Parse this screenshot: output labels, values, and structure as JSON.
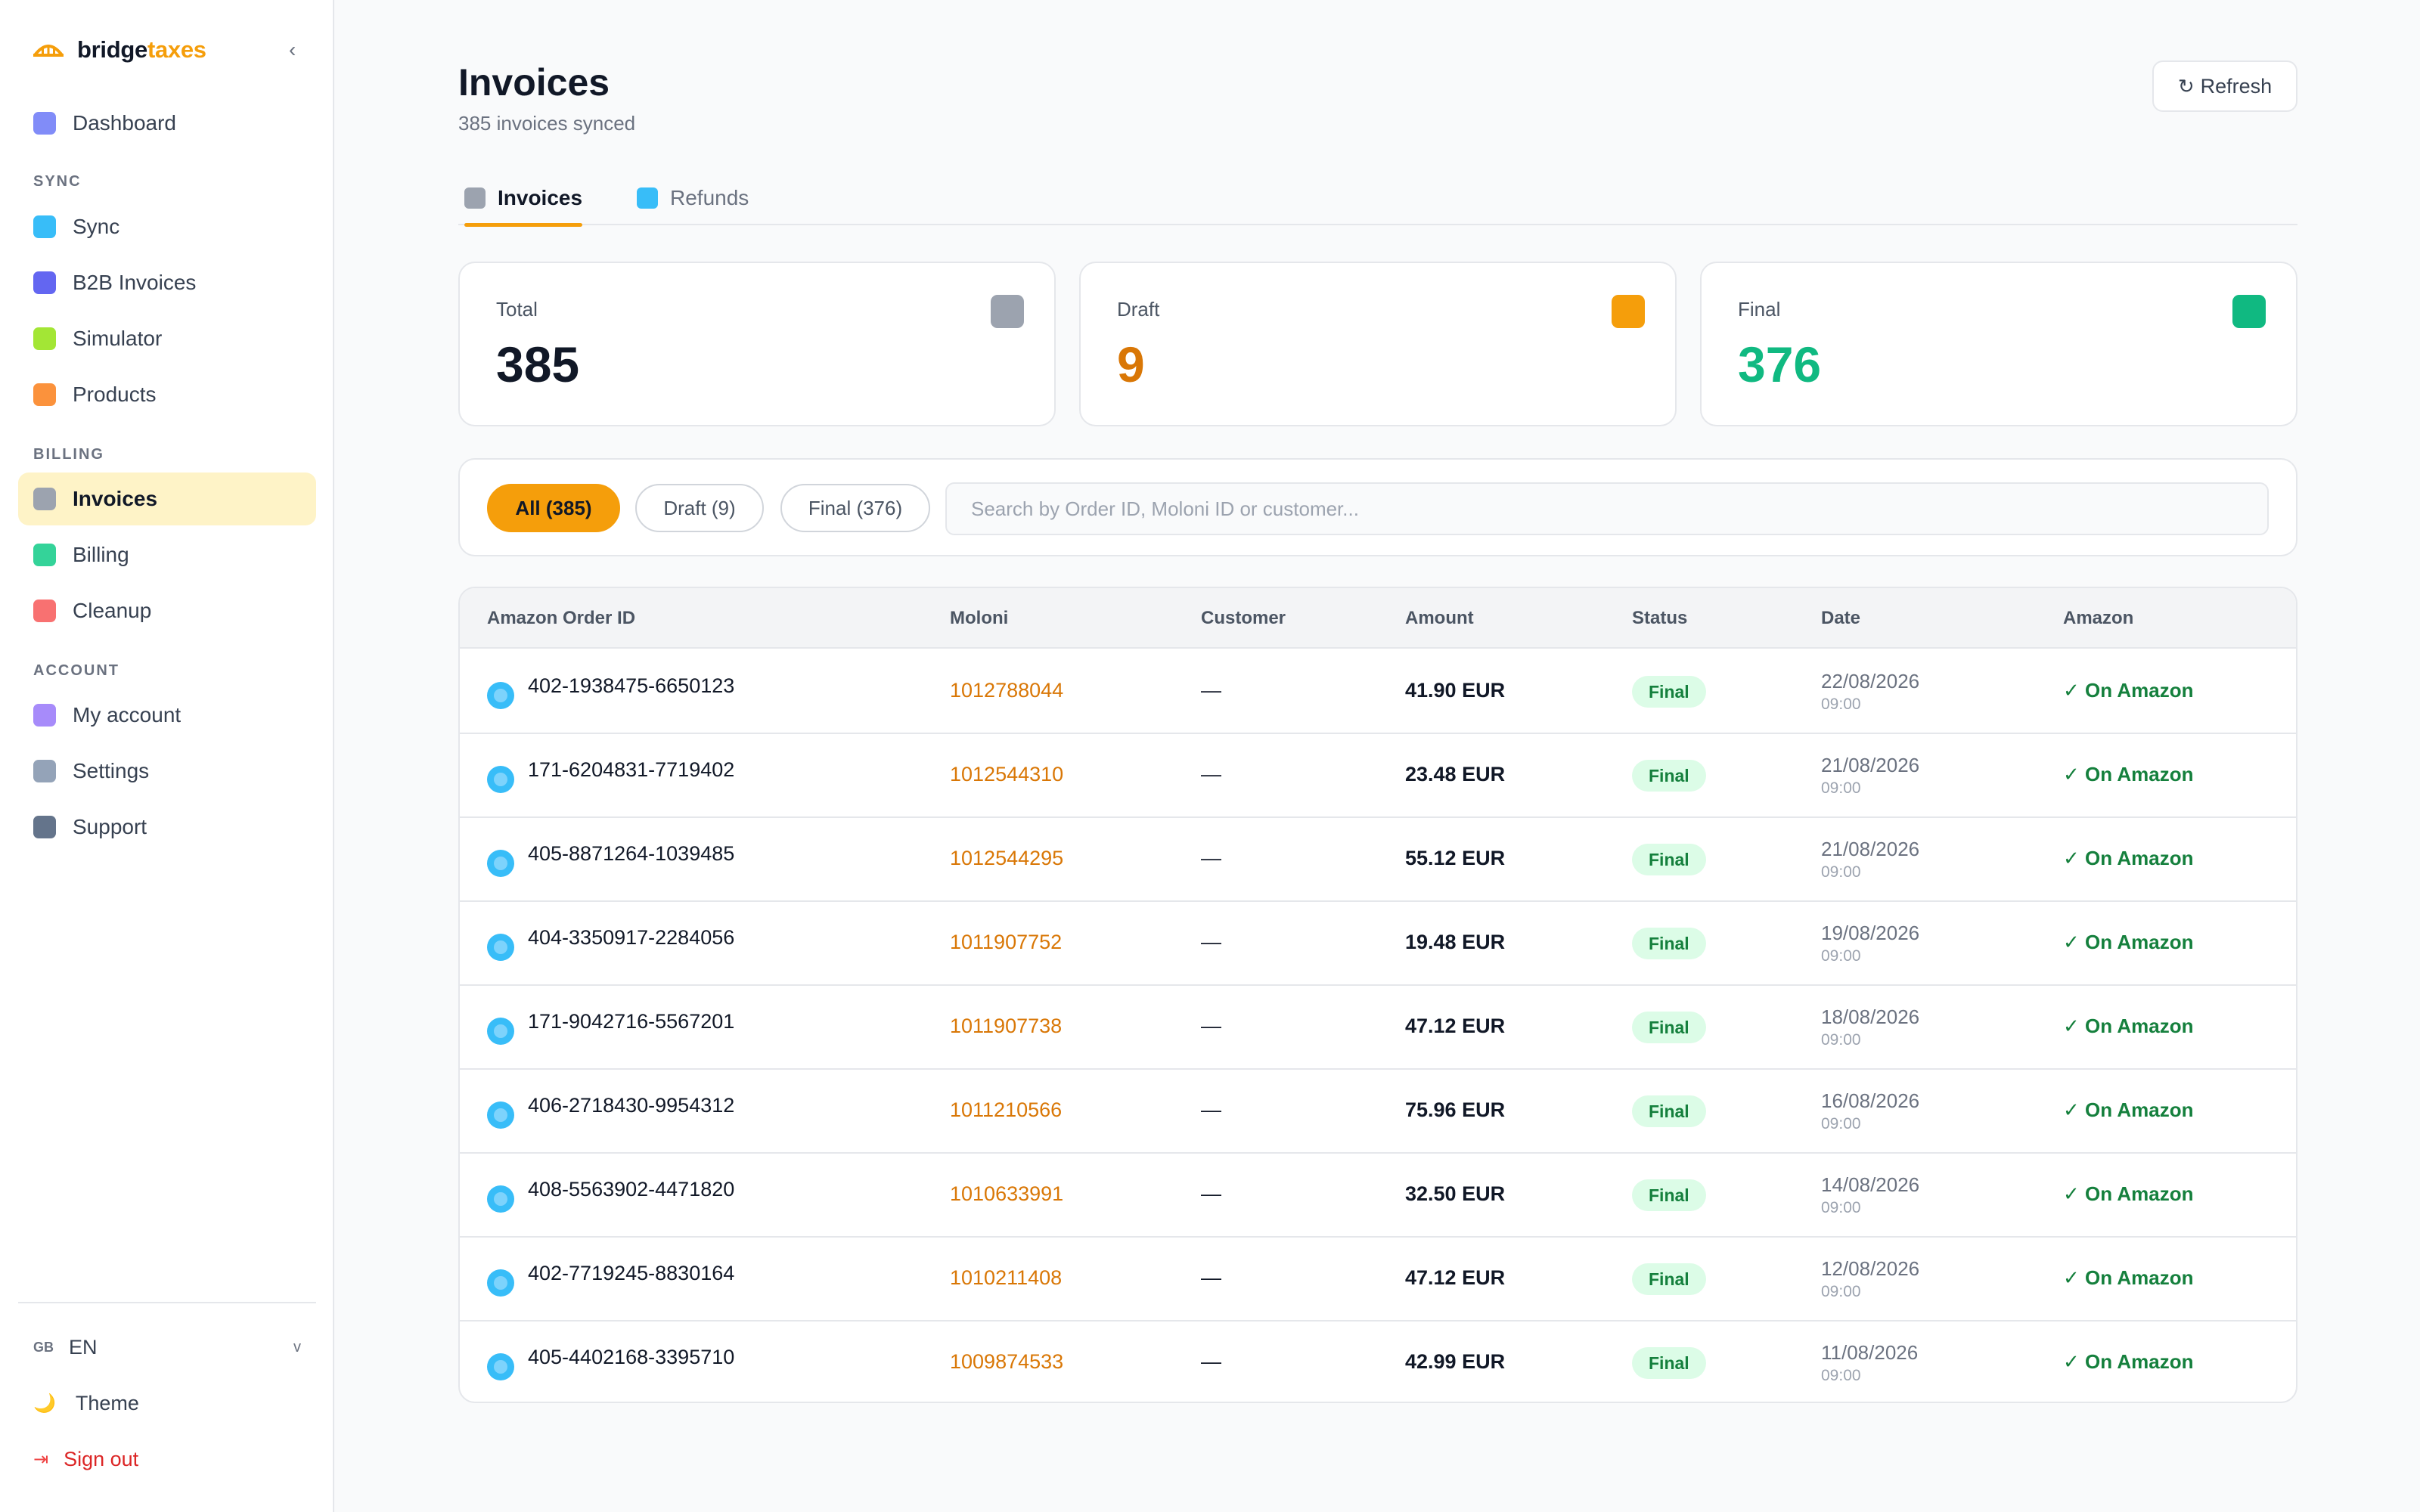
{
  "sidebar": {
    "logo": {
      "part1": "bridge",
      "part2": "taxes"
    },
    "collapse_icon": "‹",
    "sections": {
      "sync": "SYNC",
      "billing": "BILLING",
      "account": "ACCOUNT"
    },
    "items": [
      {
        "label": "Dashboard",
        "color": "#818cf8"
      },
      {
        "label": "Sync",
        "color": "#38bdf8"
      },
      {
        "label": "B2B Invoices",
        "color": "#6366f1"
      },
      {
        "label": "Simulator",
        "color": "#a3e635"
      },
      {
        "label": "Products",
        "color": "#fb923c"
      },
      {
        "label": "Invoices",
        "color": "#9ca3af",
        "active": true
      },
      {
        "label": "Billing",
        "color": "#34d399"
      },
      {
        "label": "Cleanup",
        "color": "#f87171"
      },
      {
        "label": "My account",
        "color": "#a78bfa"
      },
      {
        "label": "Settings",
        "color": "#94a3b8"
      },
      {
        "label": "Support",
        "color": "#64748b"
      }
    ],
    "language": {
      "flag": "GB",
      "code": "EN",
      "chevron": "v"
    },
    "theme": {
      "icon": "🌙",
      "label": "Theme"
    },
    "signout": {
      "icon": "⇥",
      "label": "Sign out"
    }
  },
  "header": {
    "title": "Invoices",
    "subtitle": "385 invoices synced",
    "refresh_icon": "↻",
    "refresh_label": "Refresh"
  },
  "tabs": [
    {
      "label": "Invoices",
      "color": "#9ca3af",
      "active": true
    },
    {
      "label": "Refunds",
      "color": "#38bdf8",
      "active": false
    }
  ],
  "stats": [
    {
      "label": "Total",
      "value": "385",
      "value_color": "#111827",
      "icon_color": "#9ca3af"
    },
    {
      "label": "Draft",
      "value": "9",
      "value_color": "#d97706",
      "icon_color": "#f59e0b"
    },
    {
      "label": "Final",
      "value": "376",
      "value_color": "#10b981",
      "icon_color": "#10b981"
    }
  ],
  "filters": {
    "chips": [
      "All (385)",
      "Draft (9)",
      "Final (376)"
    ],
    "search_placeholder": "Search by Order ID, Moloni ID or customer..."
  },
  "table": {
    "columns": [
      "Amazon Order ID",
      "Moloni",
      "Customer",
      "Amount",
      "Status",
      "Date",
      "Amazon"
    ],
    "rows": [
      {
        "order": "402-1938475-6650123",
        "moloni": "1012788044",
        "customer": "—",
        "amount": "41.90 EUR",
        "status": "Final",
        "date": "22/08/2026",
        "time": "09:00",
        "amazon": "✓ On Amazon"
      },
      {
        "order": "171-6204831-7719402",
        "moloni": "1012544310",
        "customer": "—",
        "amount": "23.48 EUR",
        "status": "Final",
        "date": "21/08/2026",
        "time": "09:00",
        "amazon": "✓ On Amazon"
      },
      {
        "order": "405-8871264-1039485",
        "moloni": "1012544295",
        "customer": "—",
        "amount": "55.12 EUR",
        "status": "Final",
        "date": "21/08/2026",
        "time": "09:00",
        "amazon": "✓ On Amazon"
      },
      {
        "order": "404-3350917-2284056",
        "moloni": "1011907752",
        "customer": "—",
        "amount": "19.48 EUR",
        "status": "Final",
        "date": "19/08/2026",
        "time": "09:00",
        "amazon": "✓ On Amazon"
      },
      {
        "order": "171-9042716-5567201",
        "moloni": "1011907738",
        "customer": "—",
        "amount": "47.12 EUR",
        "status": "Final",
        "date": "18/08/2026",
        "time": "09:00",
        "amazon": "✓ On Amazon"
      },
      {
        "order": "406-2718430-9954312",
        "moloni": "1011210566",
        "customer": "—",
        "amount": "75.96 EUR",
        "status": "Final",
        "date": "16/08/2026",
        "time": "09:00",
        "amazon": "✓ On Amazon"
      },
      {
        "order": "408-5563902-4471820",
        "moloni": "1010633991",
        "customer": "—",
        "amount": "32.50 EUR",
        "status": "Final",
        "date": "14/08/2026",
        "time": "09:00",
        "amazon": "✓ On Amazon"
      },
      {
        "order": "402-7719245-8830164",
        "moloni": "1010211408",
        "customer": "—",
        "amount": "47.12 EUR",
        "status": "Final",
        "date": "12/08/2026",
        "time": "09:00",
        "amazon": "✓ On Amazon"
      },
      {
        "order": "405-4402168-3395710",
        "moloni": "1009874533",
        "customer": "—",
        "amount": "42.99 EUR",
        "status": "Final",
        "date": "11/08/2026",
        "time": "09:00",
        "amazon": "✓ On Amazon"
      }
    ]
  }
}
